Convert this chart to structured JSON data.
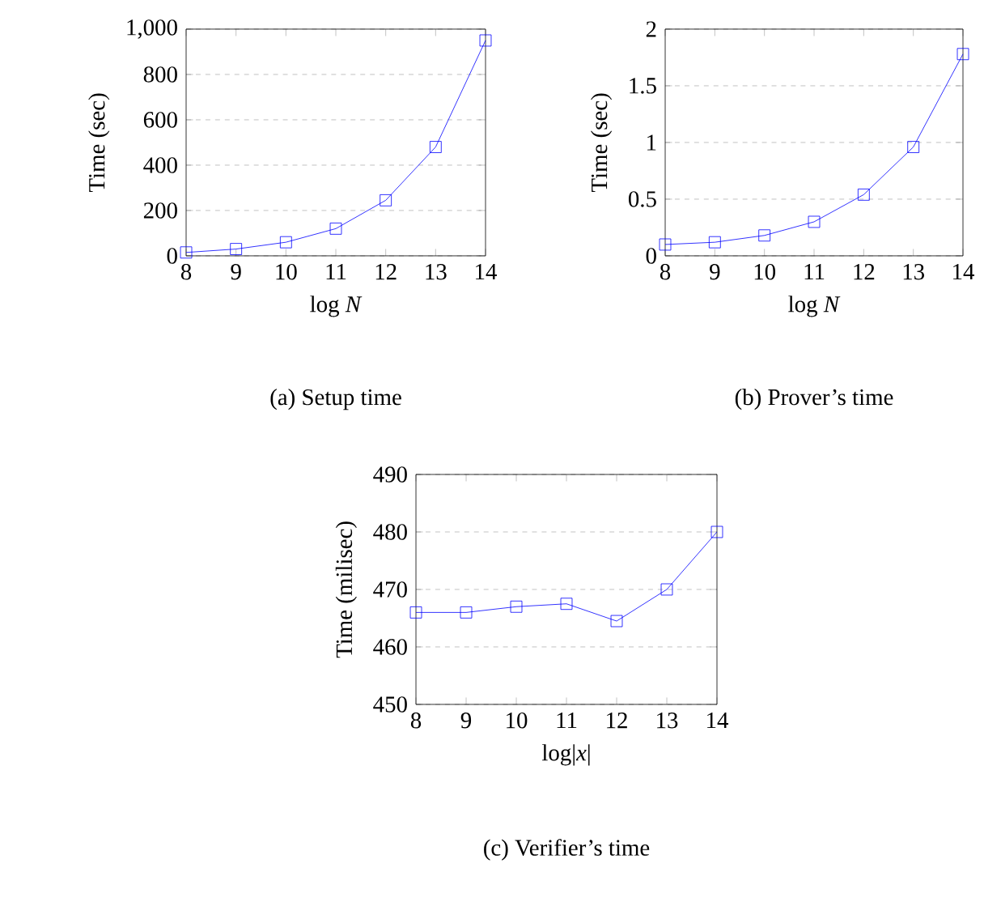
{
  "chart_data": [
    {
      "type": "line",
      "xlabel": "log *N*",
      "ylabel": "Time (sec)",
      "x": [
        8,
        9,
        10,
        11,
        12,
        13,
        14
      ],
      "xlim": [
        8,
        14
      ],
      "xticks": [
        8,
        9,
        10,
        11,
        12,
        13,
        14
      ],
      "ylim": [
        0,
        1000
      ],
      "yticks": [
        0,
        200,
        400,
        600,
        800,
        {
          "value": 1000,
          "label": "1,000"
        }
      ],
      "grid": "y",
      "marker": "square",
      "annotations": [
        "(a) Setup time"
      ],
      "series": [
        {
          "color": "#0000ff",
          "values": [
            15,
            30,
            60,
            120,
            245,
            480,
            950
          ]
        }
      ]
    },
    {
      "type": "line",
      "xlabel": "log *N*",
      "ylabel": "Time (sec)",
      "x": [
        8,
        9,
        10,
        11,
        12,
        13,
        14
      ],
      "xlim": [
        8,
        14
      ],
      "xticks": [
        8,
        9,
        10,
        11,
        12,
        13,
        14
      ],
      "ylim": [
        0,
        2
      ],
      "yticks": [
        0,
        0.5,
        1,
        1.5,
        2
      ],
      "grid": "y",
      "marker": "square",
      "annotations": [
        "(b) Prover’s time"
      ],
      "series": [
        {
          "color": "#0000ff",
          "values": [
            0.1,
            0.12,
            0.18,
            0.3,
            0.54,
            0.96,
            1.78
          ]
        }
      ]
    },
    {
      "type": "line",
      "xlabel": "log|*x*|",
      "ylabel": "Time (milisec)",
      "x": [
        8,
        9,
        10,
        11,
        12,
        13,
        14
      ],
      "xlim": [
        8,
        14
      ],
      "xticks": [
        8,
        9,
        10,
        11,
        12,
        13,
        14
      ],
      "ylim": [
        450,
        490
      ],
      "yticks": [
        450,
        460,
        470,
        480,
        490
      ],
      "grid": "y",
      "marker": "square",
      "annotations": [
        "(c) Verifier’s time"
      ],
      "series": [
        {
          "color": "#0000ff",
          "values": [
            466,
            466,
            467,
            467.5,
            464.5,
            470,
            480
          ]
        }
      ]
    }
  ]
}
